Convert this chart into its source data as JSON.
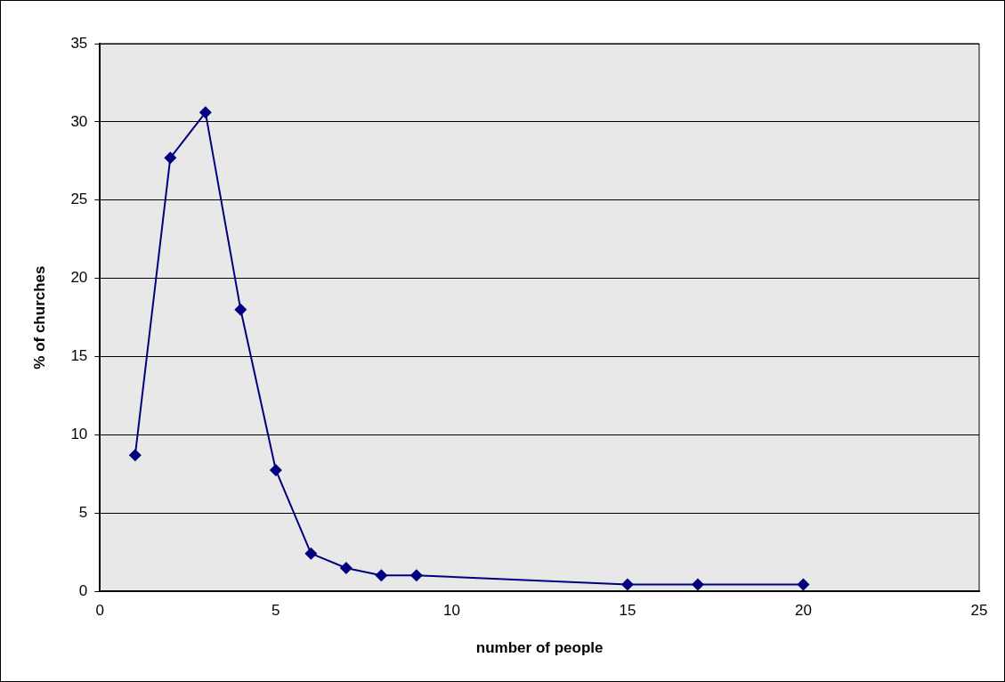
{
  "chart_data": {
    "type": "line",
    "xlabel": "number of people",
    "ylabel": "% of churches",
    "x": [
      1,
      2,
      3,
      4,
      5,
      6,
      7,
      8,
      9,
      15,
      17,
      20
    ],
    "series": [
      {
        "color": "#000080",
        "values": [
          8.7,
          27.7,
          30.6,
          18.0,
          7.75,
          2.42,
          1.49,
          1.02,
          1.02,
          0.44,
          0.44,
          0.44
        ]
      }
    ],
    "xlim": [
      0,
      25
    ],
    "xticks": [
      0,
      5,
      10,
      15,
      20,
      25
    ],
    "ylim": [
      0,
      35
    ],
    "yticks": [
      0,
      5,
      10,
      15,
      20,
      25,
      30,
      35
    ],
    "grid": "y",
    "legend": false,
    "marker": "diamond",
    "line_style": "solid"
  }
}
